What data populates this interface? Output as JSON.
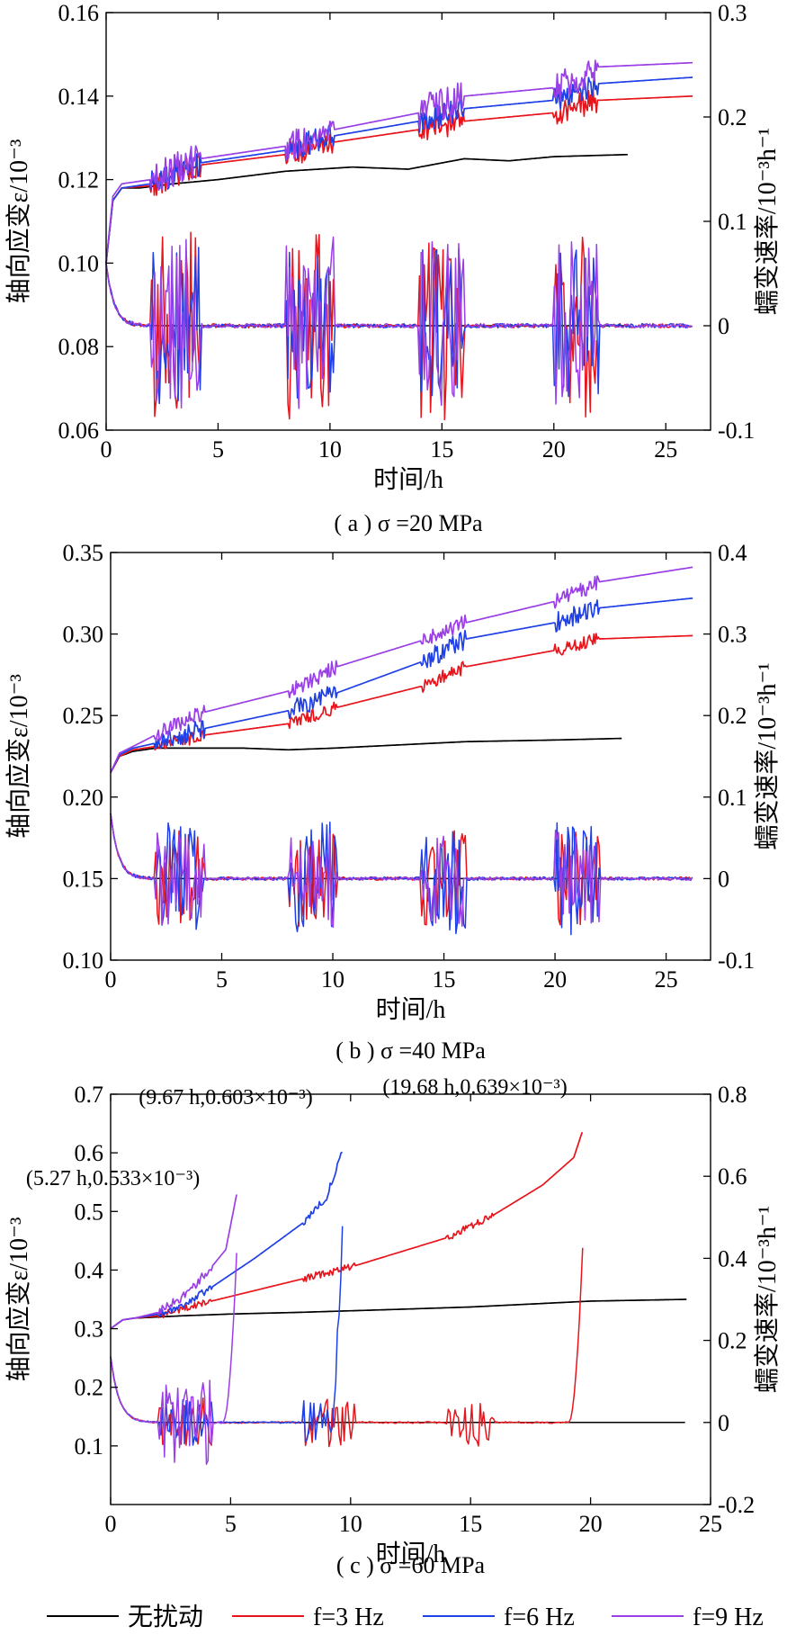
{
  "chart_data": [
    {
      "id": "a",
      "type": "line",
      "caption": "( a ) σ =20 MPa",
      "xlabel": "时间/h",
      "ylabel_left": "轴向应变ε/10⁻³",
      "ylabel_right": "蠕变速率/10⁻³h⁻¹",
      "xlim": [
        0,
        27
      ],
      "ylim_left": [
        0.06,
        0.16
      ],
      "ylim_right": [
        -0.1,
        0.3
      ],
      "xticks": [
        0,
        5,
        10,
        15,
        20,
        25
      ],
      "yticks_left": [
        0.06,
        0.08,
        0.1,
        0.12,
        0.14,
        0.16
      ],
      "yticks_right": [
        -0.1,
        0,
        0.1,
        0.2,
        0.3
      ],
      "annotations": [],
      "strain_series": [
        {
          "key": "none",
          "end": 23.3,
          "pts": [
            [
              0,
              0.1
            ],
            [
              0.3,
              0.115
            ],
            [
              0.7,
              0.118
            ],
            [
              1.5,
              0.118
            ],
            [
              3,
              0.119
            ],
            [
              5,
              0.12
            ],
            [
              8,
              0.122
            ],
            [
              11,
              0.123
            ],
            [
              13.5,
              0.1225
            ],
            [
              16,
              0.125
            ],
            [
              18,
              0.1245
            ],
            [
              20,
              0.1255
            ],
            [
              23.3,
              0.126
            ]
          ]
        },
        {
          "key": "f3",
          "end": 26.2,
          "pts": [
            [
              0,
              0.1
            ],
            [
              0.3,
              0.115
            ],
            [
              0.7,
              0.118
            ],
            [
              2,
              0.1185
            ],
            [
              4.2,
              0.1235
            ],
            [
              8,
              0.126
            ],
            [
              10.2,
              0.129
            ],
            [
              14,
              0.132
            ],
            [
              16,
              0.134
            ],
            [
              20,
              0.136
            ],
            [
              22,
              0.139
            ],
            [
              26.2,
              0.14
            ]
          ]
        },
        {
          "key": "f6",
          "end": 26.2,
          "pts": [
            [
              0,
              0.1
            ],
            [
              0.3,
              0.115
            ],
            [
              0.7,
              0.118
            ],
            [
              2,
              0.119
            ],
            [
              4.2,
              0.124
            ],
            [
              8,
              0.127
            ],
            [
              10.2,
              0.1305
            ],
            [
              14,
              0.134
            ],
            [
              16,
              0.137
            ],
            [
              20,
              0.139
            ],
            [
              22,
              0.143
            ],
            [
              26.2,
              0.1445
            ]
          ]
        },
        {
          "key": "f9",
          "end": 26.2,
          "pts": [
            [
              0,
              0.1
            ],
            [
              0.3,
              0.116
            ],
            [
              0.7,
              0.119
            ],
            [
              2,
              0.12
            ],
            [
              4.2,
              0.125
            ],
            [
              8,
              0.128
            ],
            [
              10.2,
              0.132
            ],
            [
              14,
              0.136
            ],
            [
              16,
              0.14
            ],
            [
              20,
              0.142
            ],
            [
              22,
              0.147
            ],
            [
              26.2,
              0.148
            ]
          ]
        }
      ],
      "disturbance_windows": [
        [
          2,
          4.2
        ],
        [
          8,
          10.2
        ],
        [
          14,
          16
        ],
        [
          20,
          22
        ]
      ],
      "rate_series": [
        {
          "key": "none",
          "end": 23.3,
          "rate_amp": 0,
          "strain_amp": 0
        },
        {
          "key": "f3",
          "end": 26.2,
          "rate_amp": 0.09,
          "strain_amp": 0.003
        },
        {
          "key": "f6",
          "end": 26.2,
          "rate_amp": 0.075,
          "strain_amp": 0.003
        },
        {
          "key": "f9",
          "end": 26.2,
          "rate_amp": 0.085,
          "strain_amp": 0.004
        }
      ]
    },
    {
      "id": "b",
      "type": "line",
      "caption": "( b ) σ =40 MPa",
      "xlabel": "时间/h",
      "ylabel_left": "轴向应变ε/10⁻³",
      "ylabel_right": "蠕变速率/10⁻³h⁻¹",
      "xlim": [
        0,
        27
      ],
      "ylim_left": [
        0.1,
        0.35
      ],
      "ylim_right": [
        -0.1,
        0.4
      ],
      "xticks": [
        0,
        5,
        10,
        15,
        20,
        25
      ],
      "yticks_left": [
        0.1,
        0.15,
        0.2,
        0.25,
        0.3,
        0.35
      ],
      "yticks_right": [
        -0.1,
        0,
        0.1,
        0.2,
        0.3,
        0.4
      ],
      "annotations": [],
      "strain_series": [
        {
          "key": "none",
          "end": 23.0,
          "pts": [
            [
              0,
              0.215
            ],
            [
              0.4,
              0.225
            ],
            [
              1,
              0.228
            ],
            [
              2,
              0.23
            ],
            [
              4,
              0.23
            ],
            [
              6,
              0.23
            ],
            [
              8,
              0.229
            ],
            [
              10,
              0.23
            ],
            [
              13,
              0.232
            ],
            [
              16,
              0.234
            ],
            [
              20,
              0.235
            ],
            [
              23,
              0.236
            ]
          ]
        },
        {
          "key": "f3",
          "end": 26.2,
          "pts": [
            [
              0,
              0.215
            ],
            [
              0.4,
              0.225
            ],
            [
              1,
              0.229
            ],
            [
              2,
              0.231
            ],
            [
              4.2,
              0.238
            ],
            [
              8,
              0.245
            ],
            [
              10.2,
              0.255
            ],
            [
              14,
              0.268
            ],
            [
              16,
              0.28
            ],
            [
              20,
              0.29
            ],
            [
              22,
              0.297
            ],
            [
              26.2,
              0.299
            ]
          ]
        },
        {
          "key": "f6",
          "end": 26.2,
          "pts": [
            [
              0,
              0.215
            ],
            [
              0.4,
              0.226
            ],
            [
              1,
              0.23
            ],
            [
              2,
              0.233
            ],
            [
              4.2,
              0.242
            ],
            [
              8,
              0.253
            ],
            [
              10.2,
              0.264
            ],
            [
              14,
              0.283
            ],
            [
              16,
              0.297
            ],
            [
              20,
              0.307
            ],
            [
              22,
              0.316
            ],
            [
              26.2,
              0.322
            ]
          ]
        },
        {
          "key": "f9",
          "end": 26.2,
          "pts": [
            [
              0,
              0.215
            ],
            [
              0.4,
              0.227
            ],
            [
              1,
              0.231
            ],
            [
              2,
              0.238
            ],
            [
              4.2,
              0.252
            ],
            [
              8,
              0.265
            ],
            [
              10.2,
              0.28
            ],
            [
              14,
              0.296
            ],
            [
              16,
              0.307
            ],
            [
              20,
              0.32
            ],
            [
              22,
              0.332
            ],
            [
              26.2,
              0.341
            ]
          ]
        }
      ],
      "disturbance_windows": [
        [
          2,
          4.2
        ],
        [
          8,
          10.2
        ],
        [
          14,
          16
        ],
        [
          20,
          22
        ]
      ],
      "rate_series": [
        {
          "key": "none",
          "end": 23.0,
          "rate_amp": 0,
          "strain_amp": 0
        },
        {
          "key": "f3",
          "end": 26.2,
          "rate_amp": 0.06,
          "strain_amp": 0.004
        },
        {
          "key": "f6",
          "end": 26.2,
          "rate_amp": 0.07,
          "strain_amp": 0.006
        },
        {
          "key": "f9",
          "end": 26.2,
          "rate_amp": 0.06,
          "strain_amp": 0.005
        }
      ]
    },
    {
      "id": "c",
      "type": "line",
      "caption": "( c ) σ =60 MPa",
      "xlabel": "时间/h",
      "ylabel_left": "轴向应变ε/10⁻³",
      "ylabel_right": "蠕变速率/10⁻³h⁻¹",
      "xlim": [
        0,
        25
      ],
      "ylim_left": [
        0,
        0.7
      ],
      "ylim_right": [
        -0.2,
        0.8
      ],
      "xticks": [
        0,
        5,
        10,
        15,
        20,
        25
      ],
      "yticks_left": [
        0.1,
        0.2,
        0.3,
        0.4,
        0.5,
        0.6,
        0.7
      ],
      "yticks_right": [
        -0.2,
        0,
        0.2,
        0.4,
        0.6,
        0.8
      ],
      "annotations": [
        {
          "text": "(5.27 h,0.533×10⁻³)",
          "x": 5.27,
          "y": 0.533
        },
        {
          "text": "(9.67 h,0.603×10⁻³)",
          "x": 9.67,
          "y": 0.603
        },
        {
          "text": "(19.68 h,0.639×10⁻³)",
          "x": 19.68,
          "y": 0.639
        }
      ],
      "strain_series": [
        {
          "key": "none",
          "end": 24.0,
          "pts": [
            [
              0,
              0.3
            ],
            [
              0.5,
              0.315
            ],
            [
              1,
              0.318
            ],
            [
              3,
              0.322
            ],
            [
              5,
              0.325
            ],
            [
              8,
              0.328
            ],
            [
              12,
              0.333
            ],
            [
              15,
              0.337
            ],
            [
              18,
              0.343
            ],
            [
              20,
              0.347
            ],
            [
              24,
              0.35
            ]
          ]
        },
        {
          "key": "f3",
          "end": 19.68,
          "pts": [
            [
              0,
              0.3
            ],
            [
              0.5,
              0.315
            ],
            [
              1,
              0.318
            ],
            [
              2,
              0.322
            ],
            [
              4,
              0.345
            ],
            [
              8,
              0.385
            ],
            [
              10,
              0.405
            ],
            [
              14,
              0.455
            ],
            [
              16,
              0.495
            ],
            [
              18,
              0.545
            ],
            [
              19.3,
              0.592
            ],
            [
              19.68,
              0.639
            ]
          ]
        },
        {
          "key": "f6",
          "end": 9.67,
          "pts": [
            [
              0,
              0.3
            ],
            [
              0.5,
              0.315
            ],
            [
              1,
              0.318
            ],
            [
              2,
              0.325
            ],
            [
              3,
              0.34
            ],
            [
              4,
              0.365
            ],
            [
              6,
              0.42
            ],
            [
              8,
              0.48
            ],
            [
              9,
              0.525
            ],
            [
              9.67,
              0.603
            ]
          ]
        },
        {
          "key": "f9",
          "end": 5.27,
          "pts": [
            [
              0,
              0.3
            ],
            [
              0.5,
              0.315
            ],
            [
              1,
              0.318
            ],
            [
              2,
              0.328
            ],
            [
              3,
              0.355
            ],
            [
              4,
              0.395
            ],
            [
              4.8,
              0.435
            ],
            [
              5.27,
              0.533
            ]
          ]
        }
      ],
      "disturbance_windows": [
        [
          2,
          4.2
        ],
        [
          8,
          10.2
        ],
        [
          14,
          16
        ]
      ],
      "rate_series": [
        {
          "key": "none",
          "end": 24.0,
          "rate_amp": 0,
          "strain_amp": 0
        },
        {
          "key": "f3",
          "end": 19.68,
          "rate_amp": 0.06,
          "strain_amp": 0.006
        },
        {
          "key": "f6",
          "end": 9.67,
          "rate_amp": 0.06,
          "strain_amp": 0.006
        },
        {
          "key": "f9",
          "end": 5.27,
          "rate_amp": 0.11,
          "strain_amp": 0.008
        }
      ]
    }
  ],
  "legend": [
    {
      "key": "none",
      "label": "无扰动",
      "color": "#000000"
    },
    {
      "key": "f3",
      "label": "f=3 Hz",
      "color": "#e8141c"
    },
    {
      "key": "f6",
      "label": "f=6 Hz",
      "color": "#1f40e6"
    },
    {
      "key": "f9",
      "label": "f=9 Hz",
      "color": "#9a3fe6"
    }
  ]
}
